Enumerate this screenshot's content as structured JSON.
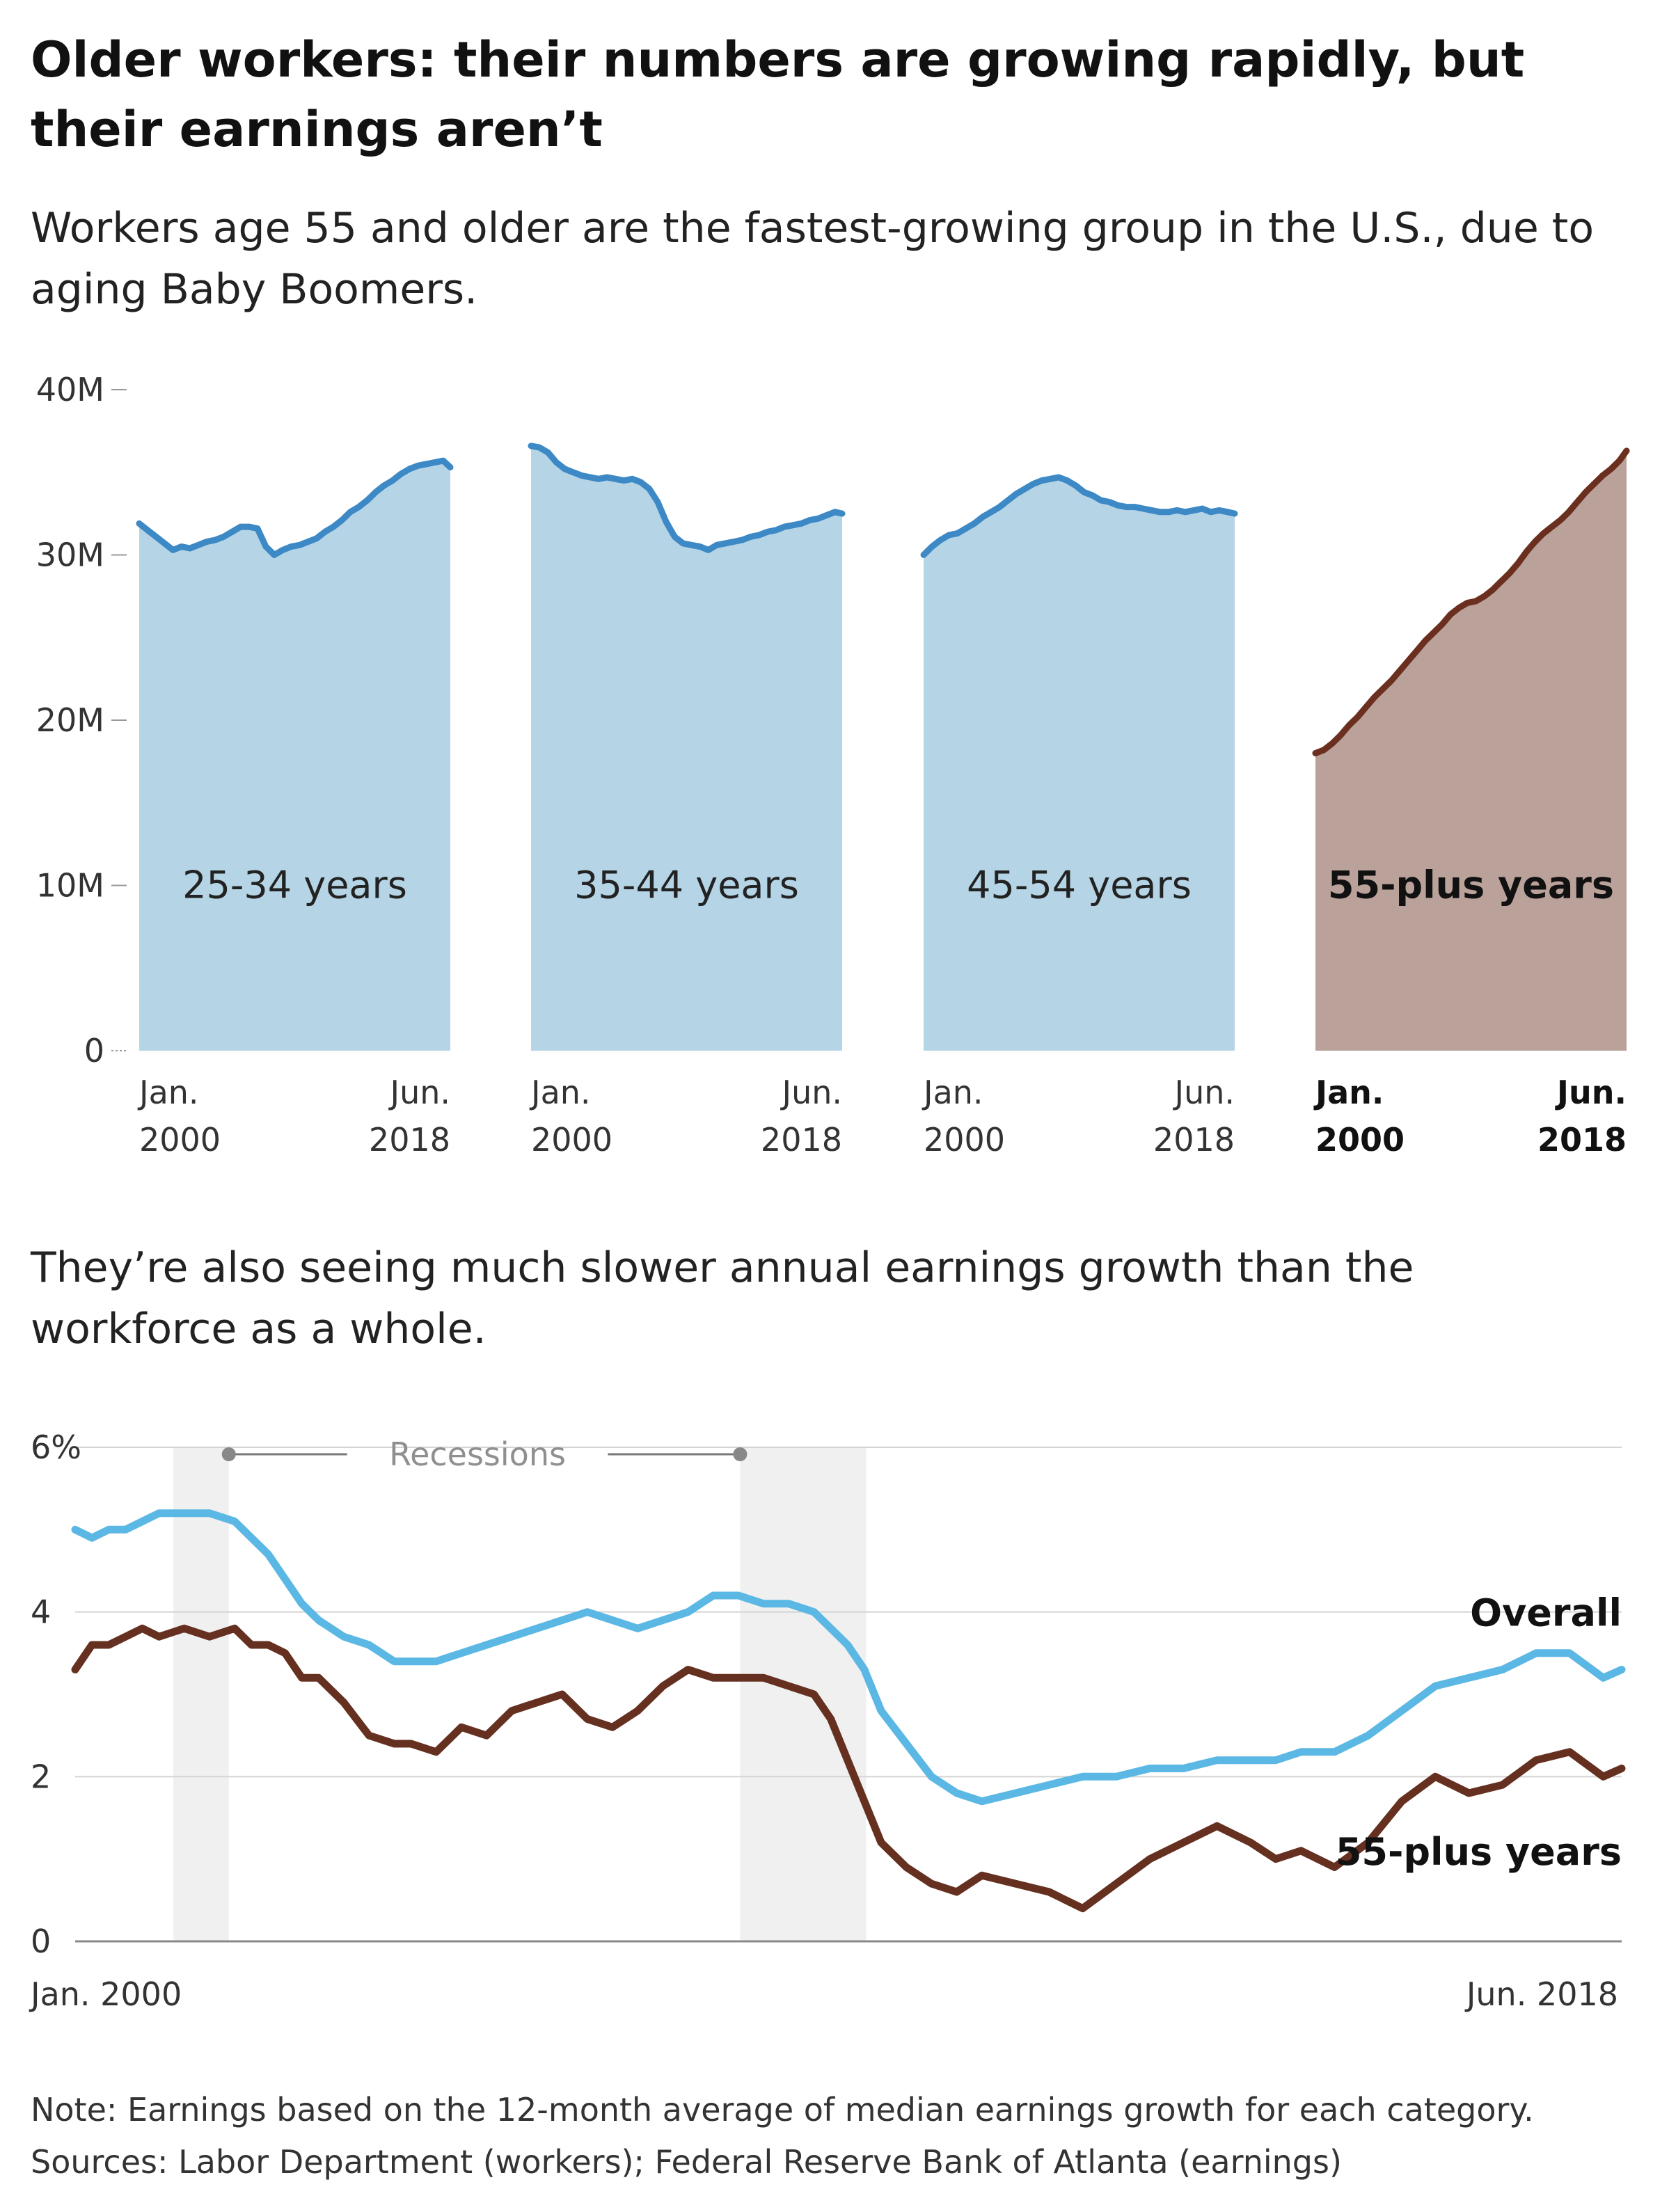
{
  "title": "Older workers: their numbers are growing rapidly, but their earnings aren’t",
  "subtitle_workers": "Workers age 55 and older are the fastest-growing group in the U.S., due to aging Baby Boomers.",
  "subtitle_earnings": "They’re also seeing much slower annual earnings growth than the workforce as a whole.",
  "note": "Note: Earnings based on the 12-month average of median earnings growth for each category.",
  "sources": "Sources: Labor Department (workers); Federal Reserve Bank of Atlanta (earnings)",
  "colors": {
    "blue_fill": "#b5d4e5",
    "blue_line": "#3d89c6",
    "brown_fill": "#baa29a",
    "brown_line": "#6b2f20",
    "overall_line": "#5bb7e3",
    "older_line": "#65301f",
    "recession_band": "#f0f0f0",
    "grid": "#d4d4d4"
  },
  "chart_data": [
    {
      "type": "area",
      "id": "workers",
      "y_ticks": [
        "0",
        "10M",
        "20M",
        "30M",
        "40M"
      ],
      "ylim": [
        0,
        40
      ],
      "y_unit": "millions",
      "x_tick_labels": [
        [
          "Jan.",
          "2000"
        ],
        [
          "Jun.",
          "2018"
        ]
      ],
      "highlight_panel": 3,
      "panels": [
        {
          "name": "25-34 years",
          "x": [
            2000.0,
            2000.5,
            2001.0,
            2001.5,
            2002.0,
            2002.5,
            2003.0,
            2003.5,
            2004.0,
            2004.5,
            2005.0,
            2005.5,
            2006.0,
            2006.5,
            2007.0,
            2007.5,
            2008.0,
            2008.5,
            2009.0,
            2009.5,
            2010.0,
            2010.5,
            2011.0,
            2011.5,
            2012.0,
            2012.5,
            2013.0,
            2013.5,
            2014.0,
            2014.5,
            2015.0,
            2015.5,
            2016.0,
            2016.5,
            2017.0,
            2017.5,
            2018.0,
            2018.42
          ],
          "y": [
            31.9,
            31.5,
            31.1,
            30.7,
            30.3,
            30.5,
            30.4,
            30.6,
            30.8,
            30.9,
            31.1,
            31.4,
            31.7,
            31.7,
            31.6,
            30.5,
            30.0,
            30.3,
            30.5,
            30.6,
            30.8,
            31.0,
            31.4,
            31.7,
            32.1,
            32.6,
            32.9,
            33.3,
            33.8,
            34.2,
            34.5,
            34.9,
            35.2,
            35.4,
            35.5,
            35.6,
            35.7,
            35.3
          ]
        },
        {
          "name": "35-44 years",
          "x": [
            2000.0,
            2000.5,
            2001.0,
            2001.5,
            2002.0,
            2002.5,
            2003.0,
            2003.5,
            2004.0,
            2004.5,
            2005.0,
            2005.5,
            2006.0,
            2006.5,
            2007.0,
            2007.5,
            2008.0,
            2008.5,
            2009.0,
            2009.5,
            2010.0,
            2010.5,
            2011.0,
            2011.5,
            2012.0,
            2012.5,
            2013.0,
            2013.5,
            2014.0,
            2014.5,
            2015.0,
            2015.5,
            2016.0,
            2016.5,
            2017.0,
            2017.5,
            2018.0,
            2018.42
          ],
          "y": [
            36.6,
            36.5,
            36.2,
            35.6,
            35.2,
            35.0,
            34.8,
            34.7,
            34.6,
            34.7,
            34.6,
            34.5,
            34.6,
            34.4,
            34.0,
            33.2,
            32.0,
            31.1,
            30.7,
            30.6,
            30.5,
            30.3,
            30.6,
            30.7,
            30.8,
            30.9,
            31.1,
            31.2,
            31.4,
            31.5,
            31.7,
            31.8,
            31.9,
            32.1,
            32.2,
            32.4,
            32.6,
            32.5
          ]
        },
        {
          "name": "45-54 years",
          "x": [
            2000.0,
            2000.5,
            2001.0,
            2001.5,
            2002.0,
            2002.5,
            2003.0,
            2003.5,
            2004.0,
            2004.5,
            2005.0,
            2005.5,
            2006.0,
            2006.5,
            2007.0,
            2007.5,
            2008.0,
            2008.5,
            2009.0,
            2009.5,
            2010.0,
            2010.5,
            2011.0,
            2011.5,
            2012.0,
            2012.5,
            2013.0,
            2013.5,
            2014.0,
            2014.5,
            2015.0,
            2015.5,
            2016.0,
            2016.5,
            2017.0,
            2017.5,
            2018.0,
            2018.42
          ],
          "y": [
            30.0,
            30.5,
            30.9,
            31.2,
            31.3,
            31.6,
            31.9,
            32.3,
            32.6,
            32.9,
            33.3,
            33.7,
            34.0,
            34.3,
            34.5,
            34.6,
            34.7,
            34.5,
            34.2,
            33.8,
            33.6,
            33.3,
            33.2,
            33.0,
            32.9,
            32.9,
            32.8,
            32.7,
            32.6,
            32.6,
            32.7,
            32.6,
            32.7,
            32.8,
            32.6,
            32.7,
            32.6,
            32.5
          ]
        },
        {
          "name": "55-plus years",
          "x": [
            2000.0,
            2000.5,
            2001.0,
            2001.5,
            2002.0,
            2002.5,
            2003.0,
            2003.5,
            2004.0,
            2004.5,
            2005.0,
            2005.5,
            2006.0,
            2006.5,
            2007.0,
            2007.5,
            2008.0,
            2008.5,
            2009.0,
            2009.5,
            2010.0,
            2010.5,
            2011.0,
            2011.5,
            2012.0,
            2012.5,
            2013.0,
            2013.5,
            2014.0,
            2014.5,
            2015.0,
            2015.5,
            2016.0,
            2016.5,
            2017.0,
            2017.5,
            2018.0,
            2018.42
          ],
          "y": [
            18.0,
            18.2,
            18.6,
            19.1,
            19.7,
            20.2,
            20.8,
            21.4,
            21.9,
            22.4,
            23.0,
            23.6,
            24.2,
            24.8,
            25.3,
            25.8,
            26.4,
            26.8,
            27.1,
            27.2,
            27.5,
            27.9,
            28.4,
            28.9,
            29.5,
            30.2,
            30.8,
            31.3,
            31.7,
            32.1,
            32.6,
            33.2,
            33.8,
            34.3,
            34.8,
            35.2,
            35.7,
            36.3
          ]
        }
      ]
    },
    {
      "type": "line",
      "id": "earnings",
      "y_ticks": [
        "0",
        "2",
        "4",
        "6%"
      ],
      "ylim": [
        0,
        6
      ],
      "x_labels": [
        "Jan. 2000",
        "Jun. 2018"
      ],
      "xlim": [
        2000.0,
        2018.42
      ],
      "recession_label": "Recessions",
      "recessions": [
        [
          2001.17,
          2001.83
        ],
        [
          2007.92,
          2009.42
        ]
      ],
      "series": [
        {
          "name": "Overall",
          "x": [
            2000.0,
            2000.2,
            2000.4,
            2000.6,
            2000.8,
            2001.0,
            2001.3,
            2001.6,
            2001.9,
            2002.1,
            2002.3,
            2002.5,
            2002.7,
            2002.9,
            2003.2,
            2003.5,
            2003.8,
            2004.0,
            2004.3,
            2004.6,
            2004.9,
            2005.2,
            2005.5,
            2005.8,
            2006.1,
            2006.4,
            2006.7,
            2007.0,
            2007.3,
            2007.6,
            2007.9,
            2008.2,
            2008.5,
            2008.8,
            2009.0,
            2009.2,
            2009.4,
            2009.6,
            2009.9,
            2010.2,
            2010.5,
            2010.8,
            2011.2,
            2011.6,
            2012.0,
            2012.4,
            2012.8,
            2013.2,
            2013.6,
            2014.0,
            2014.3,
            2014.6,
            2015.0,
            2015.4,
            2015.8,
            2016.2,
            2016.6,
            2017.0,
            2017.4,
            2017.8,
            2018.2,
            2018.42
          ],
          "y": [
            5.0,
            4.9,
            5.0,
            5.0,
            5.1,
            5.2,
            5.2,
            5.2,
            5.1,
            4.9,
            4.7,
            4.4,
            4.1,
            3.9,
            3.7,
            3.6,
            3.4,
            3.4,
            3.4,
            3.5,
            3.6,
            3.7,
            3.8,
            3.9,
            4.0,
            3.9,
            3.8,
            3.9,
            4.0,
            4.2,
            4.2,
            4.1,
            4.1,
            4.0,
            3.8,
            3.6,
            3.3,
            2.8,
            2.4,
            2.0,
            1.8,
            1.7,
            1.8,
            1.9,
            2.0,
            2.0,
            2.1,
            2.1,
            2.2,
            2.2,
            2.2,
            2.3,
            2.3,
            2.5,
            2.8,
            3.1,
            3.2,
            3.3,
            3.5,
            3.5,
            3.2,
            3.3
          ]
        },
        {
          "name": "55-plus years",
          "x": [
            2000.0,
            2000.2,
            2000.4,
            2000.6,
            2000.8,
            2001.0,
            2001.3,
            2001.6,
            2001.9,
            2002.1,
            2002.3,
            2002.5,
            2002.7,
            2002.9,
            2003.2,
            2003.5,
            2003.8,
            2004.0,
            2004.3,
            2004.6,
            2004.9,
            2005.2,
            2005.5,
            2005.8,
            2006.1,
            2006.4,
            2006.7,
            2007.0,
            2007.3,
            2007.6,
            2007.9,
            2008.2,
            2008.5,
            2008.8,
            2009.0,
            2009.2,
            2009.4,
            2009.6,
            2009.9,
            2010.2,
            2010.5,
            2010.8,
            2011.2,
            2011.6,
            2012.0,
            2012.4,
            2012.8,
            2013.2,
            2013.6,
            2014.0,
            2014.3,
            2014.6,
            2015.0,
            2015.4,
            2015.8,
            2016.2,
            2016.6,
            2017.0,
            2017.4,
            2017.8,
            2018.2,
            2018.42
          ],
          "y": [
            3.3,
            3.6,
            3.6,
            3.7,
            3.8,
            3.7,
            3.8,
            3.7,
            3.8,
            3.6,
            3.6,
            3.5,
            3.2,
            3.2,
            2.9,
            2.5,
            2.4,
            2.4,
            2.3,
            2.6,
            2.5,
            2.8,
            2.9,
            3.0,
            2.7,
            2.6,
            2.8,
            3.1,
            3.3,
            3.2,
            3.2,
            3.2,
            3.1,
            3.0,
            2.7,
            2.2,
            1.7,
            1.2,
            0.9,
            0.7,
            0.6,
            0.8,
            0.7,
            0.6,
            0.4,
            0.7,
            1.0,
            1.2,
            1.4,
            1.2,
            1.0,
            1.1,
            0.9,
            1.2,
            1.7,
            2.0,
            1.8,
            1.9,
            2.2,
            2.3,
            2.0,
            2.1
          ]
        }
      ]
    }
  ]
}
